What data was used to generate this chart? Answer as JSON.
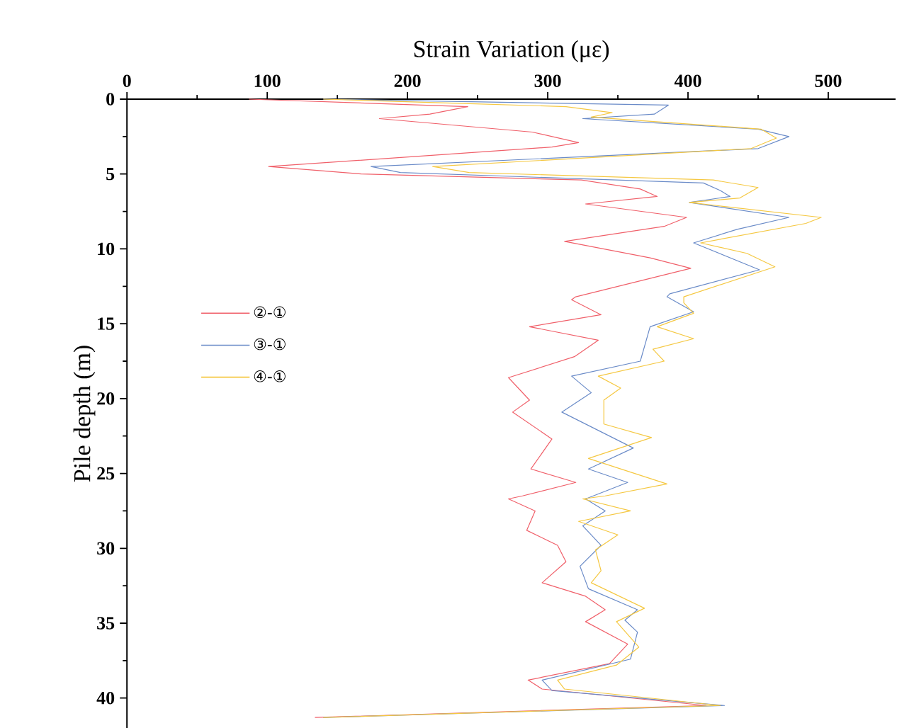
{
  "chart_data": {
    "type": "line",
    "xlabel": "Strain Variation (με)",
    "ylabel": "Pile depth (m)",
    "xlim": [
      0,
      548
    ],
    "ylim": [
      42,
      0
    ],
    "xticks": [
      0,
      100,
      200,
      300,
      400,
      500
    ],
    "yticks": [
      0,
      5,
      10,
      15,
      20,
      25,
      30,
      35,
      40
    ],
    "legend": "left",
    "marker": "none",
    "series": [
      {
        "name": "②-①",
        "color": "#f0606a",
        "x": [
          87,
          243,
          216,
          180,
          289,
          322,
          303,
          101,
          167,
          324,
          366,
          378,
          327,
          399,
          383,
          312,
          373,
          402,
          320,
          317,
          338,
          287,
          336,
          319,
          272,
          287,
          275,
          303,
          288,
          320,
          282,
          272,
          291,
          285,
          307,
          313,
          296,
          327,
          341,
          327,
          357,
          344,
          286,
          296,
          413,
          134
        ],
        "values": [
          0,
          0.5,
          1.0,
          1.3,
          2.2,
          2.9,
          3.2,
          4.5,
          5.0,
          5.4,
          6.0,
          6.5,
          7.0,
          7.9,
          8.5,
          9.5,
          10.6,
          11.3,
          13.2,
          13.4,
          14.4,
          15.2,
          16.1,
          17.2,
          18.6,
          20.1,
          20.9,
          22.7,
          24.7,
          25.6,
          26.5,
          26.7,
          27.5,
          28.8,
          29.8,
          30.9,
          32.3,
          33.2,
          34.1,
          34.9,
          36.4,
          37.7,
          38.8,
          39.4,
          40.5,
          41.3
        ]
      },
      {
        "name": "③-①",
        "color": "#6a8bc8",
        "x": [
          140,
          386,
          376,
          325,
          450,
          472,
          450,
          174,
          195,
          411,
          423,
          430,
          401,
          472,
          435,
          404,
          451,
          387,
          385,
          404,
          373,
          366,
          317,
          331,
          310,
          361,
          329,
          357,
          327,
          341,
          325,
          338,
          323,
          329,
          364,
          355,
          364,
          359,
          296,
          303,
          426,
          140
        ],
        "values": [
          0,
          0.4,
          1.0,
          1.3,
          2.0,
          2.5,
          3.3,
          4.5,
          4.9,
          5.6,
          6.1,
          6.5,
          6.9,
          7.9,
          8.7,
          9.6,
          11.4,
          13.0,
          13.2,
          14.2,
          15.2,
          17.5,
          18.5,
          19.6,
          20.9,
          23.3,
          24.7,
          25.6,
          26.7,
          27.5,
          28.5,
          29.8,
          31.2,
          32.7,
          34.1,
          34.8,
          35.6,
          37.4,
          38.8,
          39.5,
          40.5,
          41.3
        ]
      },
      {
        "name": "④-①",
        "color": "#f5c842",
        "x": [
          140,
          244,
          313,
          346,
          331,
          452,
          463,
          445,
          218,
          244,
          418,
          450,
          437,
          401,
          495,
          484,
          409,
          442,
          462,
          397,
          397,
          404,
          378,
          404,
          375,
          383,
          336,
          352,
          340,
          340,
          374,
          329,
          385,
          341,
          325,
          359,
          322,
          350,
          334,
          338,
          331,
          369,
          349,
          365,
          349,
          307,
          312,
          423,
          140
        ],
        "values": [
          0,
          0.3,
          0.5,
          0.9,
          1.2,
          2.0,
          2.6,
          3.3,
          4.5,
          4.9,
          5.4,
          5.9,
          6.6,
          6.9,
          7.9,
          8.3,
          9.6,
          10.3,
          11.2,
          13.2,
          13.6,
          14.3,
          15.2,
          16.0,
          16.7,
          17.5,
          18.5,
          19.3,
          20.1,
          21.7,
          22.6,
          24.0,
          25.7,
          26.5,
          26.7,
          27.5,
          28.2,
          29.1,
          30.1,
          31.5,
          32.3,
          34.0,
          34.9,
          36.6,
          37.8,
          38.8,
          39.4,
          40.5,
          41.3
        ]
      }
    ]
  }
}
